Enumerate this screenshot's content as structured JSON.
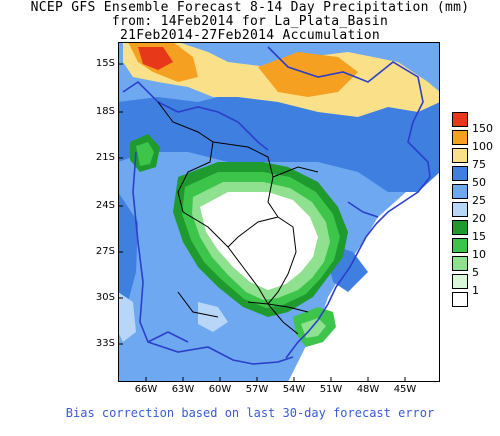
{
  "title": {
    "line1": "NCEP GFS Ensemble Forecast 8-14 Day Precipitation (mm)",
    "line2": "from: 14Feb2014   for La_Plata_Basin",
    "line3": "21Feb2014-27Feb2014 Accumulation"
  },
  "latitude_labels": [
    "15S",
    "18S",
    "21S",
    "24S",
    "27S",
    "30S",
    "33S"
  ],
  "longitude_labels": [
    "66W",
    "63W",
    "60W",
    "57W",
    "54W",
    "51W",
    "48W",
    "45W"
  ],
  "legend": {
    "levels": [
      {
        "label": "150",
        "color": "#e8381a"
      },
      {
        "label": "100",
        "color": "#f5a020"
      },
      {
        "label": "75",
        "color": "#fbe08a"
      },
      {
        "label": "50",
        "color": "#3f7fe0"
      },
      {
        "label": "25",
        "color": "#6ea8f0"
      },
      {
        "label": "20",
        "color": "#b7d6f8"
      },
      {
        "label": "15",
        "color": "#1e9a2e"
      },
      {
        "label": "10",
        "color": "#3cc54a"
      },
      {
        "label": "5",
        "color": "#8fe08f"
      },
      {
        "label": "1",
        "color": "#d9f7d9"
      }
    ],
    "lowest_color": "#ffffff"
  },
  "footer": "Bias correction based on last 30-day forecast error",
  "colors": {
    "footer_text": "#3a5bd9",
    "border_blue": "#2b3fc9",
    "border_black": "#000000",
    "ocean": "#ffffff"
  }
}
